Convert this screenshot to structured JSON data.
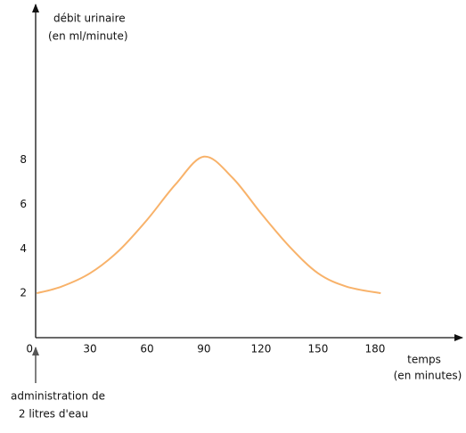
{
  "chart_data": {
    "type": "line",
    "y_label": [
      "débit urinaire",
      "(en ml/minute)"
    ],
    "x_label": [
      "temps",
      "(en minutes)"
    ],
    "annotation": [
      "administration de",
      "2 litres d'eau"
    ],
    "x": [
      2,
      15,
      30,
      45,
      60,
      75,
      90,
      105,
      120,
      135,
      150,
      165,
      183
    ],
    "series": [
      {
        "color": "#f8b26a",
        "values": [
          2.0,
          2.3,
          2.9,
          3.9,
          5.3,
          6.9,
          8.15,
          7.2,
          5.6,
          4.1,
          2.9,
          2.3,
          2.0
        ]
      }
    ],
    "xlim": [
      0,
      226
    ],
    "ylim": [
      0,
      15
    ],
    "xticks": [
      0,
      30,
      60,
      90,
      120,
      150,
      180
    ],
    "yticks": [
      2,
      4,
      6,
      8
    ]
  }
}
